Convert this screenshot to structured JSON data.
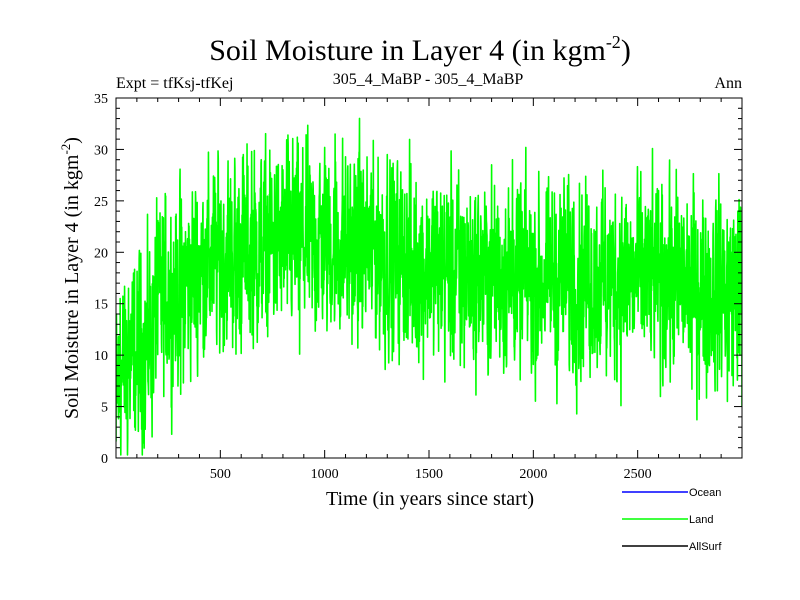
{
  "chart_data": {
    "type": "line",
    "title": "Soil Moisture in Layer 4 (in kgm",
    "title_sup": "-2",
    "title_close": ")",
    "subtitle_left": "Expt = tfKsj-tfKej",
    "subtitle_center": "305_4_MaBP - 305_4_MaBP",
    "subtitle_right": "Ann",
    "xlabel": "Time (in years since start)",
    "ylabel": "Soil Moisture in Layer 4 (in kgm",
    "ylabel_sup": "-2",
    "ylabel_close": ")",
    "xlim": [
      0,
      3000
    ],
    "ylim": [
      0,
      35
    ],
    "xticks": [
      "500",
      "1000",
      "1500",
      "2000",
      "2500"
    ],
    "xtick_values": [
      500,
      1000,
      1500,
      2000,
      2500
    ],
    "yticks": [
      "0",
      "5",
      "10",
      "15",
      "20",
      "25",
      "30",
      "35"
    ],
    "ytick_values": [
      0,
      5,
      10,
      15,
      20,
      25,
      30,
      35
    ],
    "series": [
      {
        "name": "Land",
        "color": "#00ff00",
        "noise_amplitude": 4.2,
        "trend_x": [
          0,
          50,
          100,
          150,
          200,
          300,
          400,
          500,
          600,
          700,
          800,
          1000,
          1200,
          1300,
          1500,
          1700,
          1900,
          2000,
          2200,
          2400,
          2600,
          2700,
          2800,
          2900,
          3000
        ],
        "trend_y": [
          6.5,
          9.0,
          10.0,
          11.0,
          14.5,
          16.5,
          18.5,
          19.5,
          20.0,
          20.5,
          21.0,
          21.0,
          20.5,
          19.5,
          18.5,
          18.0,
          18.0,
          17.5,
          17.5,
          17.5,
          17.5,
          17.0,
          16.5,
          16.5,
          16.5
        ],
        "peaks": [
          {
            "x": 0,
            "y": 1.6
          },
          {
            "x": 20,
            "y": 15.5
          },
          {
            "x": 60,
            "y": 16.5
          },
          {
            "x": 90,
            "y": 3.0
          },
          {
            "x": 140,
            "y": 2.8
          },
          {
            "x": 195,
            "y": 25.3
          },
          {
            "x": 310,
            "y": 6.2
          },
          {
            "x": 575,
            "y": 10.1
          },
          {
            "x": 610,
            "y": 29.5
          },
          {
            "x": 650,
            "y": 29.8
          },
          {
            "x": 880,
            "y": 10.1
          },
          {
            "x": 1000,
            "y": 30.2
          },
          {
            "x": 1050,
            "y": 31.5
          },
          {
            "x": 1160,
            "y": 29.1
          },
          {
            "x": 1300,
            "y": 29.5
          },
          {
            "x": 1420,
            "y": 11.2
          },
          {
            "x": 1650,
            "y": 9.0
          },
          {
            "x": 1900,
            "y": 29.0
          },
          {
            "x": 2000,
            "y": 9.1
          },
          {
            "x": 2350,
            "y": 8.0
          },
          {
            "x": 2760,
            "y": 6.7
          },
          {
            "x": 2930,
            "y": 5.5
          },
          {
            "x": 2980,
            "y": 24.0
          },
          {
            "x": 3000,
            "y": 5.0
          }
        ]
      }
    ],
    "legend": [
      {
        "name": "Ocean",
        "color": "#0000ff"
      },
      {
        "name": "Land",
        "color": "#00ff00"
      },
      {
        "name": "AllSurf",
        "color": "#000000"
      }
    ],
    "legend_location": "bottom-right"
  }
}
